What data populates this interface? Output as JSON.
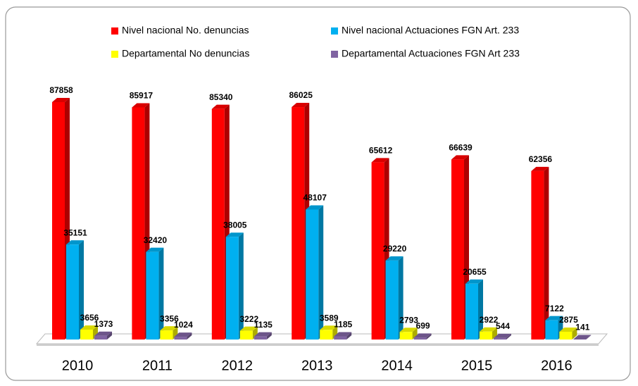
{
  "chart_data": {
    "type": "bar3d",
    "categories": [
      "2010",
      "2011",
      "2012",
      "2013",
      "2014",
      "2015",
      "2016"
    ],
    "series": [
      {
        "name": "Nivel nacional No. denuncias",
        "color": "#ff0000",
        "values": [
          87858,
          85917,
          85340,
          86025,
          65612,
          66639,
          62356
        ]
      },
      {
        "name": "Nivel nacional Actuaciones FGN Art. 233",
        "color": "#00b0f0",
        "values": [
          35151,
          32420,
          38005,
          48107,
          29220,
          20655,
          7122
        ]
      },
      {
        "name": "Departamental No denuncias",
        "color": "#ffff00",
        "values": [
          3656,
          3356,
          3222,
          3589,
          2793,
          2922,
          2875
        ]
      },
      {
        "name": "Departamental Actuaciones FGN Art 233",
        "color": "#8064a2",
        "values": [
          1373,
          1024,
          1135,
          1185,
          699,
          544,
          141
        ]
      }
    ]
  }
}
